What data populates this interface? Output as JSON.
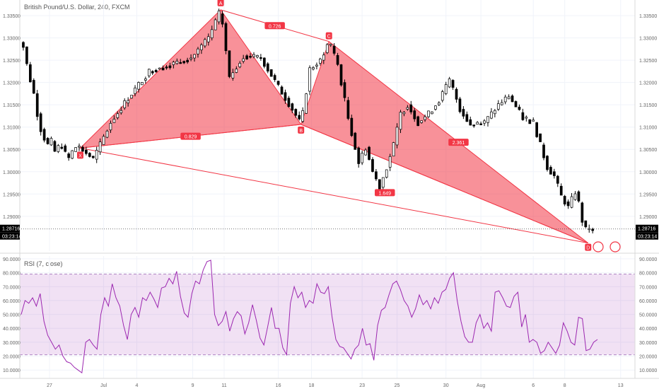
{
  "chart_data": [
    {
      "type": "candlestick",
      "title": "British Pound/U.S. Dollar, 240, FXCM",
      "y_ticks": [
        "1.33500",
        "1.33000",
        "1.32500",
        "1.32000",
        "1.31500",
        "1.31000",
        "1.30500",
        "1.30000",
        "1.29500",
        "1.29000"
      ],
      "ylim": [
        1.2822,
        1.3385
      ],
      "x_ticks": [
        "27",
        "Jul",
        "4",
        "9",
        "11",
        "16",
        "18",
        "23",
        "25",
        "30",
        "Aug",
        "6",
        "8",
        "13"
      ],
      "last_price": "1.28716",
      "countdown": "03:23:14",
      "harmonic_pattern": {
        "points": [
          {
            "label": "X",
            "x": 0.3,
            "y": 1.3053
          },
          {
            "label": "A",
            "x": 40.5,
            "y": 1.3363
          },
          {
            "label": "B",
            "x": 63.5,
            "y": 1.3106
          },
          {
            "label": "C",
            "x": 71.5,
            "y": 1.3292
          },
          {
            "label": "D",
            "x": 145.7,
            "y": 1.284
          }
        ],
        "ratios": [
          {
            "label": "0.726",
            "from": "A",
            "to": "C"
          },
          {
            "label": "0.829",
            "from": "X",
            "to": "B"
          },
          {
            "label": "1.649",
            "from": "B",
            "to": "D"
          },
          {
            "label": "2.361",
            "from": "C",
            "to": "D"
          }
        ]
      },
      "price_series": [
        {
          "x": 0,
          "p": 1.3055
        },
        {
          "x": 4,
          "p": 1.3028
        },
        {
          "x": 9,
          "p": 1.311
        },
        {
          "x": 14,
          "p": 1.3165
        },
        {
          "x": 20,
          "p": 1.3225
        },
        {
          "x": 26,
          "p": 1.324
        },
        {
          "x": 32,
          "p": 1.3255
        },
        {
          "x": 37,
          "p": 1.33
        },
        {
          "x": 40.5,
          "p": 1.3363
        },
        {
          "x": 43,
          "p": 1.321
        },
        {
          "x": 47,
          "p": 1.326
        },
        {
          "x": 52,
          "p": 1.3255
        },
        {
          "x": 57,
          "p": 1.319
        },
        {
          "x": 61,
          "p": 1.314
        },
        {
          "x": 63.5,
          "p": 1.3106
        },
        {
          "x": 66,
          "p": 1.323
        },
        {
          "x": 69,
          "p": 1.325
        },
        {
          "x": 71.5,
          "p": 1.3292
        },
        {
          "x": 74,
          "p": 1.324
        },
        {
          "x": 77,
          "p": 1.312
        },
        {
          "x": 80,
          "p": 1.302
        },
        {
          "x": 82,
          "p": 1.3055
        },
        {
          "x": 84,
          "p": 1.3
        },
        {
          "x": 86,
          "p": 1.2965
        },
        {
          "x": 88,
          "p": 1.301
        },
        {
          "x": 90,
          "p": 1.306
        },
        {
          "x": 92,
          "p": 1.313
        },
        {
          "x": 94,
          "p": 1.315
        },
        {
          "x": 97,
          "p": 1.311
        },
        {
          "x": 100,
          "p": 1.313
        },
        {
          "x": 103,
          "p": 1.316
        },
        {
          "x": 106,
          "p": 1.3205
        },
        {
          "x": 107.5,
          "p": 1.3175
        },
        {
          "x": 109,
          "p": 1.314
        },
        {
          "x": 112,
          "p": 1.3105
        },
        {
          "x": 116,
          "p": 1.311
        },
        {
          "x": 120,
          "p": 1.315
        },
        {
          "x": 123,
          "p": 1.317
        },
        {
          "x": 127,
          "p": 1.312
        },
        {
          "x": 130,
          "p": 1.311
        },
        {
          "x": 132,
          "p": 1.306
        },
        {
          "x": 134,
          "p": 1.301
        },
        {
          "x": 136,
          "p": 1.299
        },
        {
          "x": 138,
          "p": 1.2945
        },
        {
          "x": 140,
          "p": 1.292
        },
        {
          "x": 142,
          "p": 1.2955
        },
        {
          "x": 143,
          "p": 1.293
        },
        {
          "x": 144,
          "p": 1.289
        },
        {
          "x": 145,
          "p": 1.287
        },
        {
          "x": 146.5,
          "p": 1.2872
        }
      ]
    },
    {
      "type": "line",
      "title": "RSI (7, close)",
      "y_ticks": [
        "90.0000",
        "80.0000",
        "70.0000",
        "60.0000",
        "50.0000",
        "40.0000",
        "30.0000",
        "20.0000",
        "10.0000"
      ],
      "ylim": [
        4,
        92
      ],
      "band": [
        21,
        79
      ],
      "series": [
        {
          "values": [
            50,
            60,
            58,
            62,
            56,
            65,
            45,
            35,
            30,
            25,
            28,
            20,
            16,
            15,
            12,
            10,
            8,
            30,
            32,
            28,
            25,
            50,
            62,
            56,
            72,
            62,
            56,
            42,
            32,
            50,
            55,
            48,
            62,
            60,
            66,
            61,
            55,
            69,
            70,
            76,
            72,
            81,
            63,
            51,
            48,
            65,
            74,
            72,
            82,
            88,
            89,
            50,
            42,
            45,
            52,
            38,
            47,
            52,
            49,
            36,
            44,
            57,
            46,
            33,
            28,
            41,
            55,
            40,
            40,
            26,
            21,
            58,
            70,
            62,
            66,
            55,
            60,
            58,
            72,
            66,
            65,
            70,
            48,
            32,
            27,
            26,
            22,
            18,
            25,
            28,
            40,
            28,
            29,
            17,
            42,
            53,
            55,
            64,
            72,
            74,
            68,
            60,
            56,
            48,
            54,
            64,
            57,
            60,
            54,
            62,
            58,
            66,
            68,
            76,
            80,
            60,
            45,
            34,
            30,
            30,
            44,
            50,
            40,
            44,
            38,
            66,
            67,
            62,
            56,
            55,
            63,
            66,
            41,
            50,
            30,
            32,
            30,
            22,
            24,
            30,
            26,
            22,
            28,
            44,
            38,
            30,
            28,
            48,
            47,
            24,
            25,
            30,
            32
          ]
        }
      ]
    }
  ]
}
